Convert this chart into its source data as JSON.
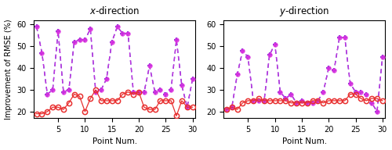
{
  "x_points": [
    1,
    2,
    3,
    4,
    5,
    6,
    7,
    8,
    9,
    10,
    11,
    12,
    13,
    14,
    15,
    16,
    17,
    18,
    19,
    20,
    21,
    22,
    23,
    24,
    25,
    26,
    27,
    28,
    29,
    30
  ],
  "scheme2_x": [
    19,
    19,
    20,
    22,
    22,
    21,
    24,
    28,
    27,
    20,
    26,
    30,
    25,
    25,
    25,
    25,
    28,
    29,
    28,
    29,
    22,
    21,
    21,
    25,
    25,
    25,
    18,
    25,
    22,
    22
  ],
  "scheme3_x": [
    59,
    47,
    28,
    30,
    57,
    29,
    30,
    52,
    53,
    53,
    58,
    29,
    30,
    35,
    52,
    59,
    56,
    56,
    29,
    29,
    29,
    41,
    29,
    30,
    28,
    30,
    53,
    32,
    22,
    35
  ],
  "scheme2_y": [
    21,
    22,
    21,
    24,
    25,
    25,
    26,
    25,
    25,
    25,
    25,
    25,
    24,
    24,
    24,
    24,
    25,
    25,
    24,
    25,
    25,
    25,
    25,
    28,
    28,
    26,
    25,
    26,
    26,
    25
  ],
  "scheme3_y": [
    21,
    22,
    37,
    48,
    45,
    25,
    25,
    25,
    46,
    51,
    29,
    26,
    28,
    24,
    25,
    24,
    24,
    25,
    29,
    40,
    39,
    54,
    54,
    33,
    29,
    29,
    28,
    24,
    20,
    45
  ],
  "xlim_min": 0.5,
  "xlim_max": 30.5,
  "ylim_min": 17,
  "ylim_max": 62,
  "yticks": [
    20,
    30,
    40,
    50,
    60
  ],
  "xticks": [
    5,
    10,
    15,
    20,
    25,
    30
  ],
  "title_x": "$x$-direction",
  "title_y": "$y$-direction",
  "ylabel": "Improvement of RMSE (%)",
  "xlabel": "Point Num.",
  "color_red": "#e83030",
  "color_magenta": "#e030e0",
  "color_blue": "#3030d0",
  "figsize": [
    5.0,
    1.92
  ]
}
